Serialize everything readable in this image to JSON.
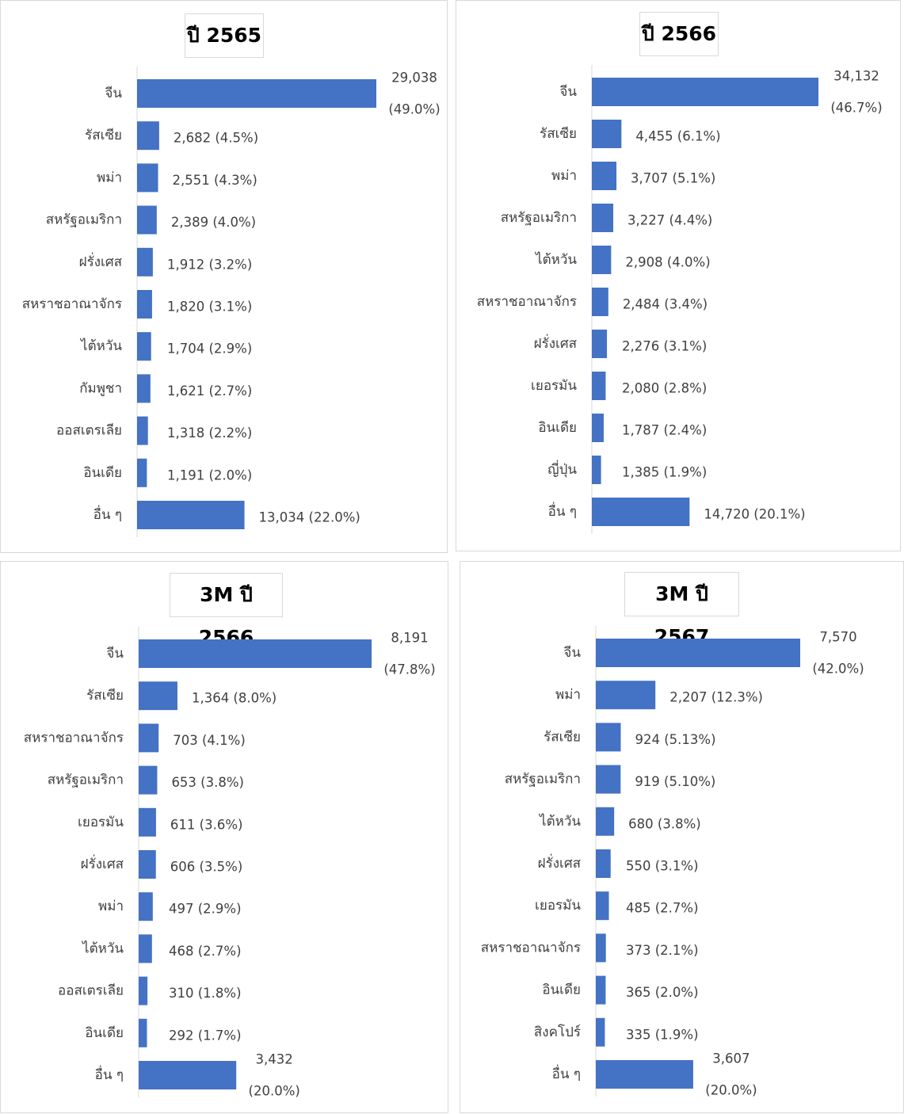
{
  "colors": {
    "bar": "#4472C4",
    "axis": "#d9d9d9",
    "text": "#404040"
  },
  "chart_data": [
    {
      "type": "bar",
      "orientation": "horizontal",
      "title": "ปี 2565",
      "categories": [
        "จีน",
        "รัสเซีย",
        "พม่า",
        "สหรัฐอเมริกา",
        "ฝรั่งเศส",
        "สหราชอาณาจักร",
        "ไต้หวัน",
        "กัมพูชา",
        "ออสเตรเลีย",
        "อินเดีย",
        "อื่น ๆ"
      ],
      "values": [
        29038,
        2682,
        2551,
        2389,
        1912,
        1820,
        1704,
        1621,
        1318,
        1191,
        13034
      ],
      "value_labels": [
        "29,038",
        "2,682",
        "2,551",
        "2,389",
        "1,912",
        "1,820",
        "1,704",
        "1,621",
        "1,318",
        "1,191",
        "13,034"
      ],
      "percent_labels": [
        "(49.0%)",
        "(4.5%)",
        "(4.3%)",
        "(4.0%)",
        "(3.2%)",
        "(3.1%)",
        "(2.9%)",
        "(2.7%)",
        "(2.2%)",
        "(2.0%)",
        "(22.0%)"
      ]
    },
    {
      "type": "bar",
      "orientation": "horizontal",
      "title": "ปี 2566",
      "categories": [
        "จีน",
        "รัสเซีย",
        "พม่า",
        "สหรัฐอเมริกา",
        "ไต้หวัน",
        "สหราชอาณาจักร",
        "ฝรั่งเศส",
        "เยอรมัน",
        "อินเดีย",
        "ญี่ปุ่น",
        "อื่น ๆ"
      ],
      "values": [
        34132,
        4455,
        3707,
        3227,
        2908,
        2484,
        2276,
        2080,
        1787,
        1385,
        14720
      ],
      "value_labels": [
        "34,132",
        "4,455",
        "3,707",
        "3,227",
        "2,908",
        "2,484",
        "2,276",
        "2,080",
        "1,787",
        "1,385",
        "14,720"
      ],
      "percent_labels": [
        "(46.7%)",
        "(6.1%)",
        "(5.1%)",
        "(4.4%)",
        "(4.0%)",
        "(3.4%)",
        "(3.1%)",
        "(2.8%)",
        "(2.4%)",
        "(1.9%)",
        "(20.1%)"
      ]
    },
    {
      "type": "bar",
      "orientation": "horizontal",
      "title": "3M ปี 2566",
      "categories": [
        "จีน",
        "รัสเซีย",
        "สหราชอาณาจักร",
        "สหรัฐอเมริกา",
        "เยอรมัน",
        "ฝรั่งเศส",
        "พม่า",
        "ไต้หวัน",
        "ออสเตรเลีย",
        "อินเดีย",
        "อื่น ๆ"
      ],
      "values": [
        8191,
        1364,
        703,
        653,
        611,
        606,
        497,
        468,
        310,
        292,
        3432
      ],
      "value_labels": [
        "8,191",
        "1,364",
        "703",
        "653",
        "611",
        "606",
        "497",
        "468",
        "310",
        "292",
        "3,432"
      ],
      "percent_labels": [
        "(47.8%)",
        "(8.0%)",
        "(4.1%)",
        "(3.8%)",
        "(3.6%)",
        "(3.5%)",
        "(2.9%)",
        "(2.7%)",
        "(1.8%)",
        "(1.7%)",
        "(20.0%)"
      ]
    },
    {
      "type": "bar",
      "orientation": "horizontal",
      "title": "3M ปี 2567",
      "categories": [
        "จีน",
        "พม่า",
        "รัสเซีย",
        "สหรัฐอเมริกา",
        "ไต้หวัน",
        "ฝรั่งเศส",
        "เยอรมัน",
        "สหราชอาณาจักร",
        "อินเดีย",
        "สิงคโปร์",
        "อื่น ๆ"
      ],
      "values": [
        7570,
        2207,
        924,
        919,
        680,
        550,
        485,
        373,
        365,
        335,
        3607
      ],
      "value_labels": [
        "7,570",
        "2,207",
        "924",
        "919",
        "680",
        "550",
        "485",
        "373",
        "365",
        "335",
        "3,607"
      ],
      "percent_labels": [
        "(42.0%)",
        "(12.3%)",
        "(5.13%)",
        "(5.10%)",
        "(3.8%)",
        "(3.1%)",
        "(2.7%)",
        "(2.1%)",
        "(2.0%)",
        "(1.9%)",
        "(20.0%)"
      ]
    }
  ]
}
